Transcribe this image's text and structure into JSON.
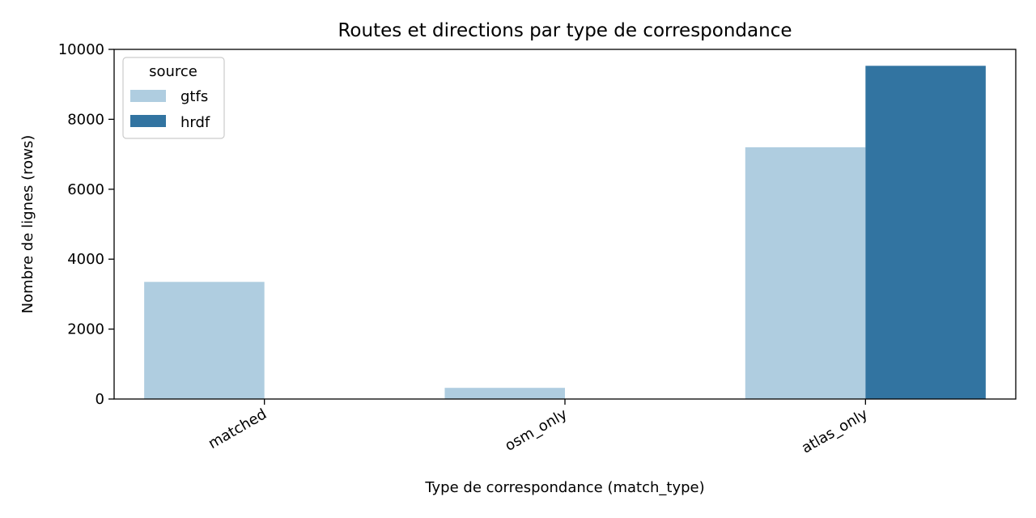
{
  "chart_data": {
    "type": "bar",
    "title": "Routes et directions par type de correspondance",
    "xlabel": "Type de correspondance (match_type)",
    "ylabel": "Nombre de lignes (rows)",
    "categories": [
      "matched",
      "osm_only",
      "atlas_only"
    ],
    "series": [
      {
        "name": "gtfs",
        "values": [
          3350,
          320,
          7200
        ],
        "color": "#afcde0"
      },
      {
        "name": "hrdf",
        "values": [
          0,
          0,
          9530
        ],
        "color": "#3274a1"
      }
    ],
    "ylim": [
      0,
      10000
    ],
    "yticks": [
      0,
      2000,
      4000,
      6000,
      8000,
      10000
    ],
    "grid": false,
    "legend": {
      "title": "source",
      "position": "top-left"
    }
  }
}
